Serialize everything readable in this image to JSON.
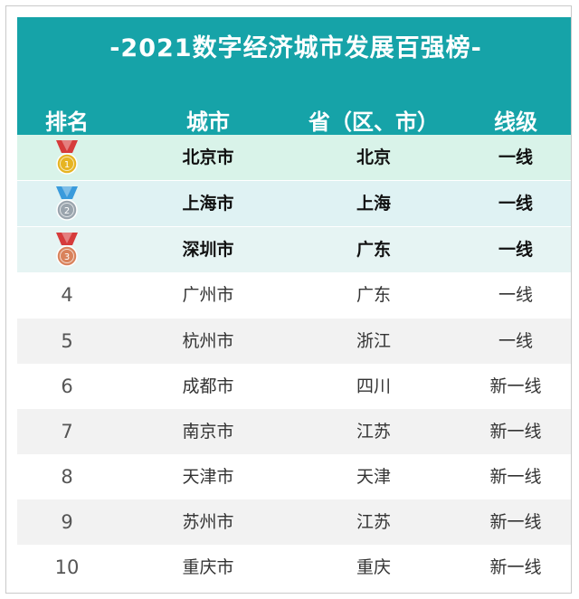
{
  "title": "-2021数字经济城市发展百强榜-",
  "headers": {
    "rank": "排名",
    "city": "城市",
    "province": "省（区、市）",
    "tier": "线级"
  },
  "rows": [
    {
      "rank": "",
      "medal": "gold",
      "city": "北京市",
      "province": "北京",
      "tier": "一线",
      "bg": "#d9f3e9"
    },
    {
      "rank": "",
      "medal": "silver",
      "city": "上海市",
      "province": "上海",
      "tier": "一线",
      "bg": "#dff2f3"
    },
    {
      "rank": "",
      "medal": "bronze",
      "city": "深圳市",
      "province": "广东",
      "tier": "一线",
      "bg": "#e6f4f3"
    },
    {
      "rank": "4",
      "city": "广州市",
      "province": "广东",
      "tier": "一线",
      "bg": "#ffffff"
    },
    {
      "rank": "5",
      "city": "杭州市",
      "province": "浙江",
      "tier": "一线",
      "bg": "#f2f2f2"
    },
    {
      "rank": "6",
      "city": "成都市",
      "province": "四川",
      "tier": "新一线",
      "bg": "#ffffff"
    },
    {
      "rank": "7",
      "city": "南京市",
      "province": "江苏",
      "tier": "新一线",
      "bg": "#f2f2f2"
    },
    {
      "rank": "8",
      "city": "天津市",
      "province": "天津",
      "tier": "新一线",
      "bg": "#ffffff"
    },
    {
      "rank": "9",
      "city": "苏州市",
      "province": "江苏",
      "tier": "新一线",
      "bg": "#f2f2f2"
    },
    {
      "rank": "10",
      "city": "重庆市",
      "province": "重庆",
      "tier": "新一线",
      "bg": "#ffffff"
    }
  ],
  "colors": {
    "header_bg": "#16a3a8",
    "gold": "#e6b422",
    "silver": "#9aa4ad",
    "bronze": "#d9825b",
    "ribbon_red": "#d63b3b",
    "ribbon_blue": "#3a9bdc"
  }
}
